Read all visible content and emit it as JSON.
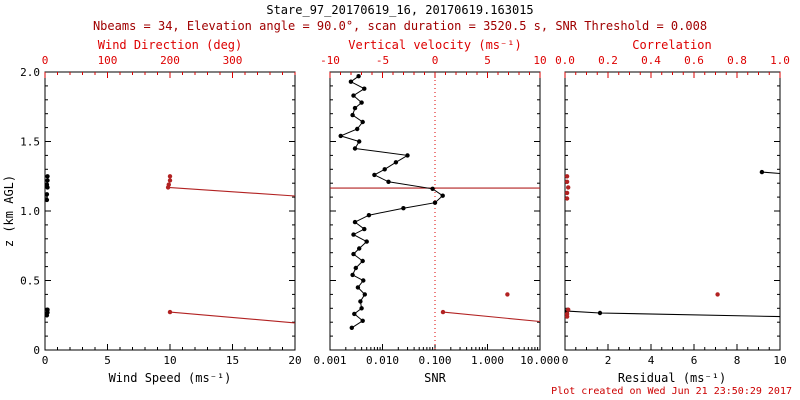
{
  "header": {
    "title": "Stare_97_20170619_16, 20170619.163015",
    "subtitle": "Nbeams = 34, Elevation angle = 90.0°, scan duration = 3520.5 s, SNR Threshold = 0.008"
  },
  "footer": {
    "created": "Plot created on Wed Jun 21 23:50:29 2017"
  },
  "colors": {
    "black": "#000000",
    "axis_red": "#dd0000",
    "data_red": "#b22222",
    "subtitle_red": "#a00000"
  },
  "chart_data": [
    {
      "type": "scatter",
      "name": "wind",
      "x_bottom": {
        "label": "Wind Speed (ms⁻¹)",
        "range": [
          0,
          20
        ],
        "ticks": [
          0,
          5,
          10,
          15,
          20
        ],
        "tick_labels": [
          "0",
          "5",
          "10",
          "15",
          "20"
        ],
        "minor_step": 1,
        "log": false
      },
      "x_top": {
        "label": "Wind Direction (deg)",
        "range": [
          0,
          400
        ],
        "ticks": [
          0,
          100,
          200,
          300
        ],
        "tick_labels": [
          "0",
          "100",
          "200",
          "300"
        ],
        "minor_step": 20
      },
      "y": {
        "label": "z (km AGL)",
        "range": [
          0,
          2
        ],
        "ticks": [
          0,
          0.5,
          1,
          1.5,
          2
        ],
        "tick_labels": [
          "0",
          "0.5",
          "1.0",
          "1.5",
          "2.0"
        ],
        "minor_step": 0.1,
        "show_labels": true
      },
      "series": [
        {
          "name": "wind-speed",
          "color": "black",
          "axis": "bottom",
          "connect": false,
          "points": [
            [
              0.2,
              1.25
            ],
            [
              0.2,
              1.22
            ],
            [
              0.15,
              1.19
            ],
            [
              0.2,
              1.17
            ],
            [
              0.15,
              1.12
            ],
            [
              0.15,
              1.08
            ],
            [
              0.2,
              0.29
            ],
            [
              0.2,
              0.27
            ],
            [
              0.15,
              0.25
            ]
          ]
        },
        {
          "name": "wind-direction",
          "color": "red",
          "axis": "top",
          "connect": false,
          "points": [
            [
              200,
              1.25
            ],
            [
              200,
              1.22
            ],
            [
              198,
              1.19
            ],
            [
              197,
              1.17
            ],
            [
              200,
              0.273
            ]
          ],
          "lines": [
            [
              [
                197,
                1.17
              ],
              [
                400,
                1.108
              ]
            ],
            [
              [
                200,
                0.273
              ],
              [
                400,
                0.195
              ]
            ]
          ]
        }
      ]
    },
    {
      "type": "scatter",
      "name": "snr",
      "x_bottom": {
        "label": "SNR",
        "range": [
          0.001,
          10
        ],
        "ticks": [
          0.001,
          0.01,
          0.1,
          1,
          10
        ],
        "tick_labels": [
          "0.001",
          "0.010",
          "0.100",
          "1.000",
          "10.000"
        ],
        "log": true
      },
      "x_top": {
        "label": "Vertical velocity (ms⁻¹)",
        "range": [
          -10,
          10
        ],
        "ticks": [
          -10,
          -5,
          0,
          5,
          10
        ],
        "tick_labels": [
          "-10",
          "-5",
          "0",
          "5",
          "10"
        ],
        "minor_step": 1
      },
      "y": {
        "label": "",
        "range": [
          0,
          2
        ],
        "ticks": [
          0,
          0.5,
          1,
          1.5,
          2
        ],
        "tick_labels": [
          "",
          "",
          "",
          "",
          ""
        ],
        "minor_step": 0.1,
        "show_labels": false
      },
      "red_hlines": [
        1.165
      ],
      "red_vline_dotted": 0.1,
      "series": [
        {
          "name": "snr-profile",
          "color": "black",
          "axis": "bottom",
          "connect": true,
          "points": [
            [
              0.0035,
              1.97
            ],
            [
              0.0025,
              1.93
            ],
            [
              0.0045,
              1.88
            ],
            [
              0.0028,
              1.83
            ],
            [
              0.004,
              1.78
            ],
            [
              0.003,
              1.74
            ],
            [
              0.0027,
              1.69
            ],
            [
              0.0042,
              1.64
            ],
            [
              0.0033,
              1.59
            ],
            [
              0.0016,
              1.54
            ],
            [
              0.0036,
              1.5
            ],
            [
              0.003,
              1.45
            ],
            [
              0.03,
              1.4
            ],
            [
              0.018,
              1.35
            ],
            [
              0.011,
              1.3
            ],
            [
              0.007,
              1.26
            ],
            [
              0.013,
              1.21
            ],
            [
              0.09,
              1.16
            ],
            [
              0.14,
              1.11
            ],
            [
              0.1,
              1.06
            ],
            [
              0.025,
              1.02
            ],
            [
              0.0055,
              0.97
            ],
            [
              0.003,
              0.92
            ],
            [
              0.0045,
              0.87
            ],
            [
              0.0028,
              0.83
            ],
            [
              0.005,
              0.78
            ],
            [
              0.0036,
              0.73
            ],
            [
              0.0028,
              0.69
            ],
            [
              0.0042,
              0.64
            ],
            [
              0.0031,
              0.59
            ],
            [
              0.0027,
              0.54
            ],
            [
              0.0043,
              0.5
            ],
            [
              0.0034,
              0.45
            ],
            [
              0.0046,
              0.4
            ],
            [
              0.0038,
              0.35
            ],
            [
              0.004,
              0.3
            ],
            [
              0.0029,
              0.26
            ],
            [
              0.0042,
              0.21
            ],
            [
              0.0026,
              0.16
            ]
          ]
        },
        {
          "name": "vertical-velocity",
          "color": "red",
          "axis": "top",
          "connect": false,
          "points": [
            [
              0.76,
              0.273
            ],
            [
              6.9,
              0.4
            ]
          ],
          "lines": [
            [
              [
                0.76,
                0.273
              ],
              [
                10,
                0.205
              ]
            ]
          ]
        }
      ]
    },
    {
      "type": "scatter",
      "name": "residual",
      "x_bottom": {
        "label": "Residual (ms⁻¹)",
        "range": [
          0,
          10
        ],
        "ticks": [
          0,
          2,
          4,
          6,
          8,
          10
        ],
        "tick_labels": [
          "0",
          "2",
          "4",
          "6",
          "8",
          "10"
        ],
        "minor_step": 0.5,
        "log": false
      },
      "x_top": {
        "label": "Correlation",
        "range": [
          0,
          1
        ],
        "ticks": [
          0,
          0.2,
          0.4,
          0.6,
          0.8,
          1
        ],
        "tick_labels": [
          "0.0",
          "0.2",
          "0.4",
          "0.6",
          "0.8",
          "1.0"
        ],
        "minor_step": 0.05
      },
      "y": {
        "label": "",
        "range": [
          0,
          2
        ],
        "ticks": [
          0,
          0.5,
          1,
          1.5,
          2
        ],
        "tick_labels": [
          "",
          "",
          "",
          "",
          ""
        ],
        "minor_step": 0.1,
        "show_labels": false
      },
      "series": [
        {
          "name": "residual",
          "color": "black",
          "axis": "bottom",
          "connect": false,
          "points": [
            [
              0.1,
              0.28
            ],
            [
              1.63,
              0.266
            ],
            [
              9.16,
              1.28
            ]
          ],
          "lines": [
            [
              [
                0.1,
                0.28
              ],
              [
                1.63,
                0.266
              ],
              [
                10,
                0.24
              ]
            ],
            [
              [
                9.16,
                1.28
              ],
              [
                10,
                1.27
              ]
            ]
          ]
        },
        {
          "name": "correlation",
          "color": "red",
          "axis": "top",
          "connect": false,
          "points": [
            [
              0.01,
              1.25
            ],
            [
              0.01,
              1.21
            ],
            [
              0.015,
              1.17
            ],
            [
              0.01,
              1.13
            ],
            [
              0.01,
              1.09
            ],
            [
              0.71,
              0.4
            ],
            [
              0.015,
              0.29
            ],
            [
              0.01,
              0.26
            ],
            [
              0.01,
              0.24
            ]
          ]
        }
      ]
    }
  ]
}
